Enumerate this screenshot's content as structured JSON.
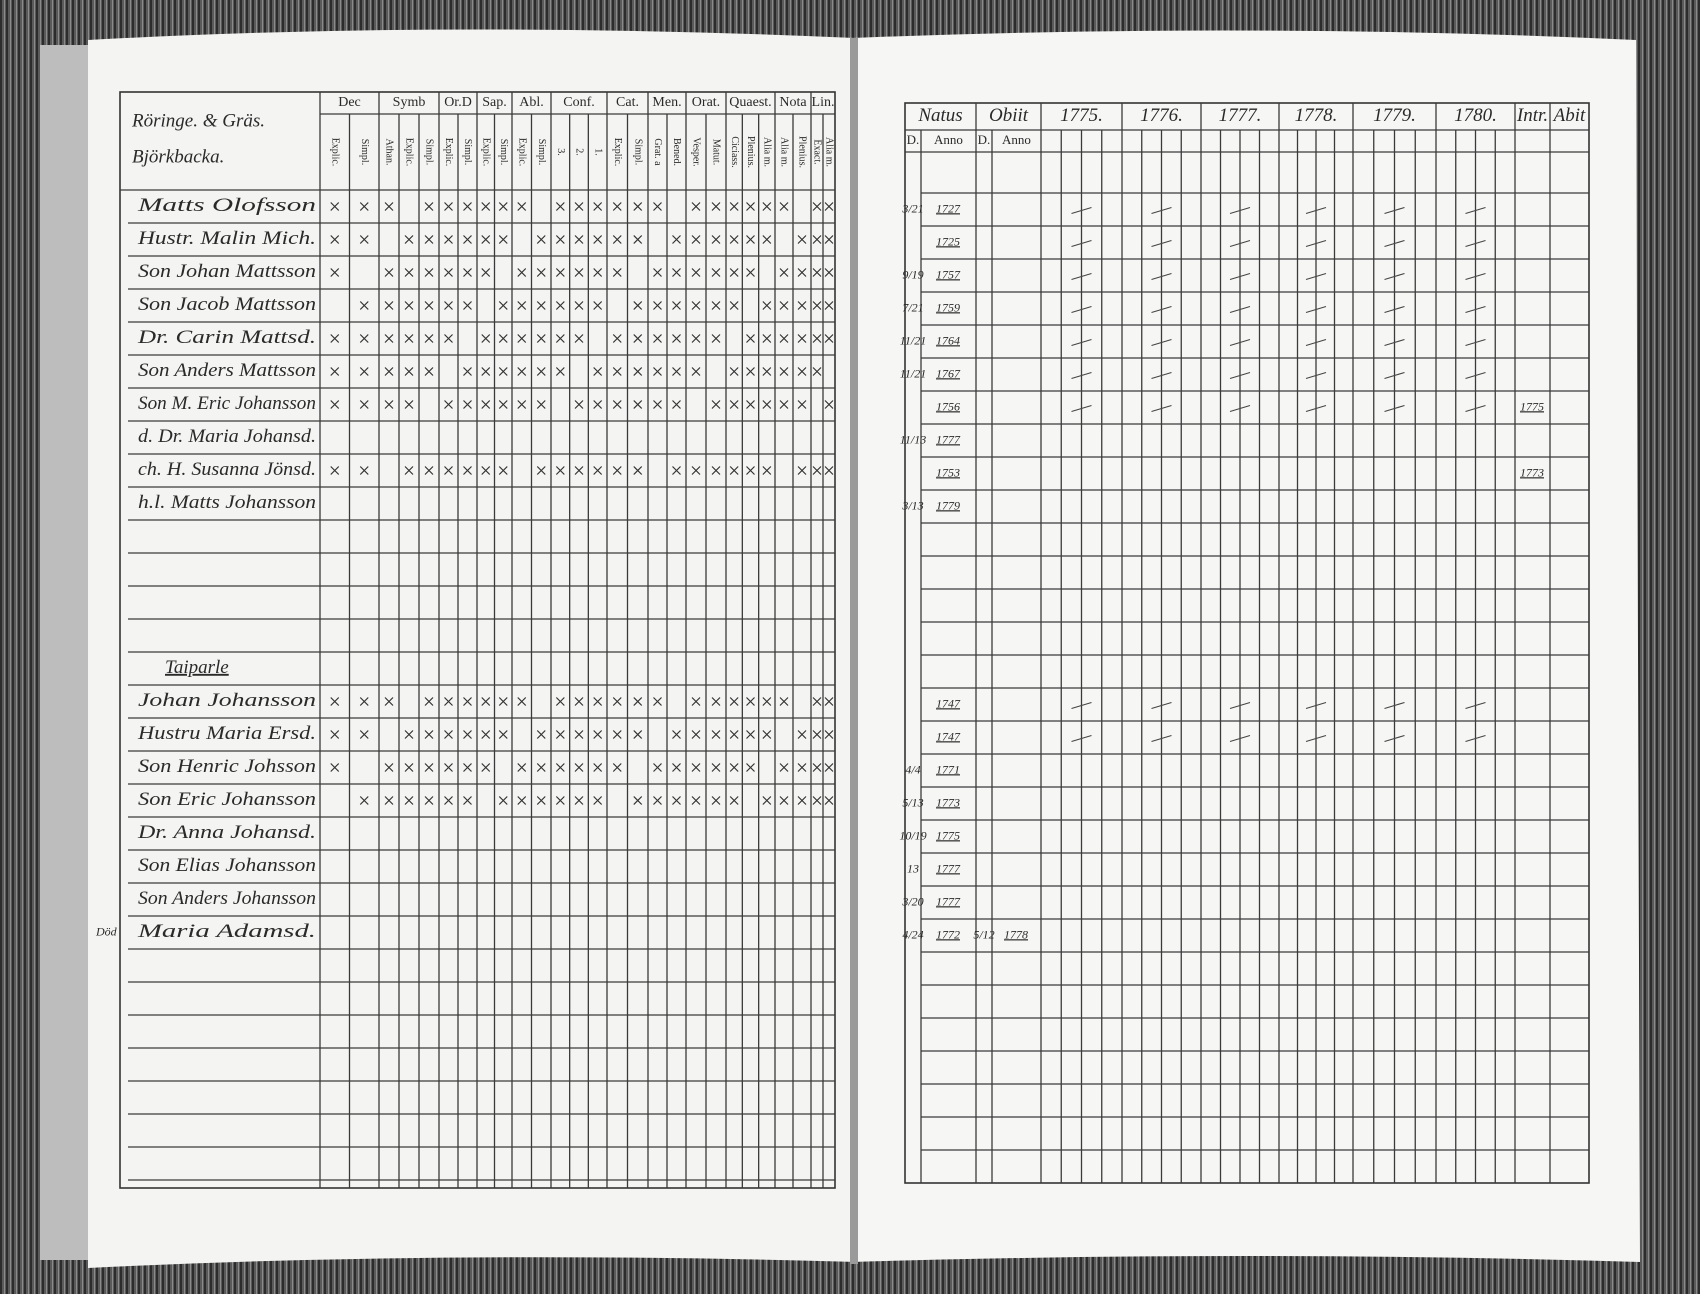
{
  "left": {
    "title": [
      "Röringe. & Gräs.",
      "Björkbacka."
    ],
    "columns": [
      {
        "label": "Dec",
        "sub": [
          "Explic.",
          "Simpl."
        ]
      },
      {
        "label": "Symb",
        "sub": [
          "Athan.",
          "Explic.",
          "Simpl."
        ]
      },
      {
        "label": "Or.D",
        "sub": [
          "Explic.",
          "Simpl."
        ]
      },
      {
        "label": "Sap.",
        "sub": [
          "Explic.",
          "Simpl."
        ]
      },
      {
        "label": "Abl.",
        "sub": [
          "Explic.",
          "Simpl."
        ]
      },
      {
        "label": "Conf.",
        "sub": [
          "3.",
          "2.",
          "1."
        ]
      },
      {
        "label": "Cat.",
        "sub": [
          "Explic.",
          "Simpl."
        ]
      },
      {
        "label": "Men.",
        "sub": [
          "Grat. a",
          "Bened."
        ]
      },
      {
        "label": "Orat.",
        "sub": [
          "Vesper.",
          "Matut."
        ]
      },
      {
        "label": "Quaest.",
        "sub": [
          "Ciciass.",
          "Plenius.",
          "Alia m."
        ]
      },
      {
        "label": "Nota",
        "sub": [
          "Alia m.",
          "Plenius."
        ]
      },
      {
        "label": "Lin.",
        "sub": [
          "Exact.",
          "Alia m."
        ]
      }
    ],
    "groups": [
      {
        "names": [
          "Matts Olofsson",
          "Hustr. Malin Mich.",
          "Son Johan Mattsson",
          "Son Jacob Mattsson",
          "Dr. Carin Mattsd.",
          "Son Anders Mattsson",
          "Son M. Eric Johansson",
          "d. Dr. Maria Johansd.",
          "ch. H. Susanna Jönsd.",
          "h.l. Matts Johansson"
        ]
      },
      {
        "heading": "Taiparle",
        "names": [
          "Johan Johansson",
          "Hustru Maria Ersd.",
          "Son Henric Johsson",
          "Son Eric Johansson",
          "Dr. Anna Johansd.",
          "Son Elias Johansson",
          "Son Anders Johansson",
          "Maria Adamsd."
        ],
        "margin_note": "Död"
      }
    ]
  },
  "right": {
    "columns": [
      "Natus",
      "Obiit",
      "1775.",
      "1776.",
      "1777.",
      "1778.",
      "1779.",
      "1780.",
      "Intr.",
      "Abit"
    ],
    "subheaders": [
      "D.",
      "Anno",
      "D.",
      "Anno"
    ],
    "groups": [
      {
        "rows": [
          {
            "natus_day": "3/21",
            "natus_anno": "1727"
          },
          {
            "natus_anno": "1725"
          },
          {
            "natus_day": "9/19",
            "natus_anno": "1757"
          },
          {
            "natus_day": "7/21",
            "natus_anno": "1759"
          },
          {
            "natus_day": "11/21",
            "natus_anno": "1764"
          },
          {
            "natus_day": "11/21",
            "natus_anno": "1767"
          },
          {
            "natus_anno": "1756",
            "intr": "1775"
          },
          {
            "natus_day": "11/13",
            "natus_anno": "1777"
          },
          {
            "natus_anno": "1753",
            "intr": "1773"
          },
          {
            "natus_day": "3/13",
            "natus_anno": "1779"
          }
        ]
      },
      {
        "rows": [
          {
            "natus_anno": "1747"
          },
          {
            "natus_anno": "1747"
          },
          {
            "natus_day": "4/4",
            "natus_anno": "1771"
          },
          {
            "natus_day": "5/13",
            "natus_anno": "1773"
          },
          {
            "natus_day": "10/19",
            "natus_anno": "1775"
          },
          {
            "natus_day": "13",
            "natus_anno": "1777"
          },
          {
            "natus_day": "3/20",
            "natus_anno": "1777"
          },
          {
            "natus_day": "4/24",
            "natus_anno": "1772",
            "obit_day": "5/12",
            "obit_anno": "1778"
          }
        ]
      }
    ]
  }
}
